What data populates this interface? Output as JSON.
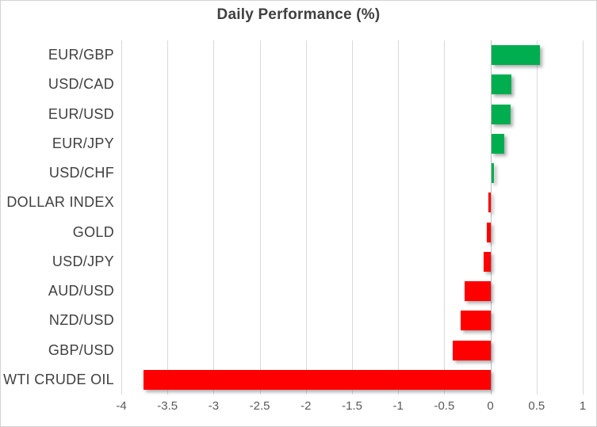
{
  "chart_data": {
    "type": "bar",
    "orientation": "horizontal",
    "title": "Daily Performance (%)",
    "categories": [
      "EUR/GBP",
      "USD/CAD",
      "EUR/USD",
      "EUR/JPY",
      "USD/CHF",
      "DOLLAR INDEX",
      "GOLD",
      "USD/JPY",
      "AUD/USD",
      "NZD/USD",
      "GBP/USD",
      "WTI CRUDE OIL"
    ],
    "values": [
      0.53,
      0.22,
      0.21,
      0.14,
      0.03,
      -0.02,
      -0.04,
      -0.07,
      -0.28,
      -0.32,
      -0.41,
      -3.76
    ],
    "xlim": [
      -4,
      1
    ],
    "x_ticks": [
      -4,
      -3.5,
      -3,
      -2.5,
      -2,
      -1.5,
      -1,
      -0.5,
      0,
      0.5,
      1
    ],
    "x_tick_labels": [
      "-4",
      "-3.5",
      "-3",
      "-2.5",
      "-2",
      "-1.5",
      "-1",
      "-0.5",
      "0",
      "0.5",
      "1"
    ],
    "grid": "vertical-only",
    "legend": "none",
    "colors": {
      "positive": "#00AE50",
      "negative": "#FF0000",
      "gridline": "#d9d9d9",
      "zero_axis": "#bdbdbd",
      "title_text": "#404040",
      "category_text": "#404040",
      "tick_text": "#595959"
    }
  }
}
